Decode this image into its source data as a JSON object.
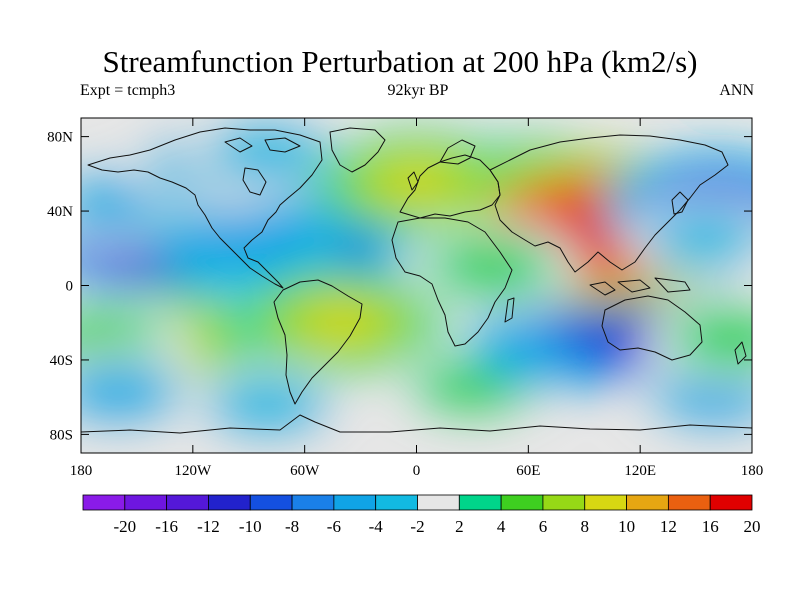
{
  "header": {
    "title": "Streamfunction Perturbation at 200 hPa (km2/s)",
    "left": "Expt = tcmph3",
    "center": "92kyr BP",
    "right": "ANN"
  },
  "axes": {
    "lat_ticks": [
      {
        "value": 80,
        "label": "80N"
      },
      {
        "value": 40,
        "label": "40N"
      },
      {
        "value": 0,
        "label": "0"
      },
      {
        "value": -40,
        "label": "40S"
      },
      {
        "value": -80,
        "label": "80S"
      }
    ],
    "lon_ticks": [
      {
        "value": -180,
        "label": "180"
      },
      {
        "value": -120,
        "label": "120W"
      },
      {
        "value": -60,
        "label": "60W"
      },
      {
        "value": 0,
        "label": "0"
      },
      {
        "value": 60,
        "label": "60E"
      },
      {
        "value": 120,
        "label": "120E"
      },
      {
        "value": 180,
        "label": "180"
      }
    ]
  },
  "colorbar": {
    "labels": [
      "-20",
      "-16",
      "-12",
      "-10",
      "-8",
      "-6",
      "-4",
      "-2",
      "2",
      "4",
      "6",
      "8",
      "10",
      "12",
      "16",
      "20"
    ],
    "colors": [
      "#8a1be8",
      "#6e16e0",
      "#5418d8",
      "#2222cc",
      "#1450e0",
      "#1a80e8",
      "#10a4e6",
      "#12bae2",
      "#e6e6e6",
      "#00d58a",
      "#3ecf20",
      "#96d916",
      "#d7d712",
      "#e6a612",
      "#ea6010",
      "#e00000"
    ]
  },
  "field": [
    {
      "lon": -140,
      "lat": 25,
      "value": -12
    },
    {
      "lon": -160,
      "lat": 45,
      "value": -5
    },
    {
      "lon": -60,
      "lat": 22,
      "value": -10
    },
    {
      "lon": -90,
      "lat": 25,
      "value": -6
    },
    {
      "lon": -110,
      "lat": 65,
      "value": -5
    },
    {
      "lon": -80,
      "lat": 72,
      "value": -4
    },
    {
      "lon": -140,
      "lat": -30,
      "value": 9
    },
    {
      "lon": -170,
      "lat": -28,
      "value": 5
    },
    {
      "lon": -40,
      "lat": -20,
      "value": 9
    },
    {
      "lon": -160,
      "lat": -58,
      "value": -5
    },
    {
      "lon": -80,
      "lat": -65,
      "value": -4
    },
    {
      "lon": 30,
      "lat": -55,
      "value": 4
    },
    {
      "lon": 80,
      "lat": -30,
      "value": -7
    },
    {
      "lon": 120,
      "lat": -23,
      "value": -12
    },
    {
      "lon": 160,
      "lat": -60,
      "value": -5
    },
    {
      "lon": 60,
      "lat": 48,
      "value": 10
    },
    {
      "lon": 0,
      "lat": 55,
      "value": 8
    },
    {
      "lon": 100,
      "lat": 30,
      "value": 20
    },
    {
      "lon": 40,
      "lat": 10,
      "value": 5
    },
    {
      "lon": 160,
      "lat": 42,
      "value": -10
    },
    {
      "lon": 155,
      "lat": 25,
      "value": -3
    },
    {
      "lon": 170,
      "lat": -28,
      "value": 5
    }
  ]
}
